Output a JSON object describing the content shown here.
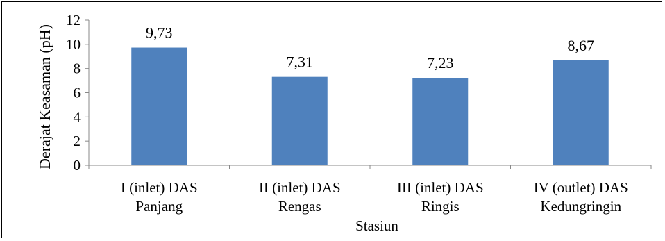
{
  "chart_data": {
    "type": "bar",
    "categories": [
      [
        "I (inlet) DAS",
        "Panjang"
      ],
      [
        "II (inlet) DAS",
        "Rengas"
      ],
      [
        "III (inlet) DAS",
        "Ringis"
      ],
      [
        "IV (outlet) DAS",
        "Kedungringin"
      ]
    ],
    "values": [
      9.73,
      7.31,
      7.23,
      8.67
    ],
    "data_labels": [
      "9,73",
      "7,31",
      "7,23",
      "8,67"
    ],
    "title": "",
    "xlabel": "Stasiun",
    "ylabel": "Derajat Keasaman (pH)",
    "ylim": [
      0,
      12
    ],
    "yticks": [
      0,
      2,
      4,
      6,
      8,
      10,
      12
    ],
    "grid": false,
    "legend": "none",
    "bar_color": "#4f81bd"
  }
}
